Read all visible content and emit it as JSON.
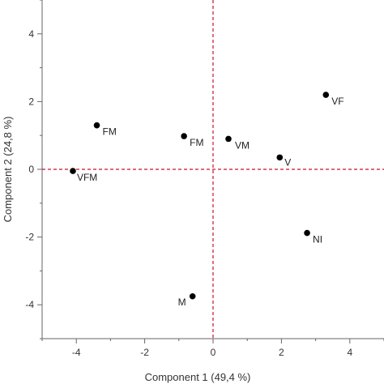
{
  "chart_data": {
    "type": "scatter",
    "title": "",
    "xlabel": "Component 1  (49,4 %)",
    "ylabel": "Component 2  (24,8 %)",
    "xlim": [
      -5,
      5
    ],
    "ylim": [
      -5,
      5
    ],
    "xticks": [
      -4,
      -2,
      0,
      2,
      4
    ],
    "yticks": [
      -4,
      -2,
      0,
      2,
      4
    ],
    "xtick_labels": [
      "-4",
      "-2",
      "0",
      "2",
      "4"
    ],
    "ytick_labels": [
      "-4",
      "-2",
      "0",
      "2",
      "4"
    ],
    "grid": false,
    "reference_lines": {
      "x": 0,
      "y": 0,
      "color": "#c8102e",
      "style": "dashed"
    },
    "point_color": "#000000",
    "points": [
      {
        "label": "VFM",
        "x": -4.1,
        "y": -0.05
      },
      {
        "label": "FM",
        "x": -3.4,
        "y": 1.3
      },
      {
        "label": "FM",
        "x": -0.85,
        "y": 0.98
      },
      {
        "label": "VM",
        "x": 0.45,
        "y": 0.9
      },
      {
        "label": "V",
        "x": 1.95,
        "y": 0.35
      },
      {
        "label": "VF",
        "x": 3.3,
        "y": 2.2
      },
      {
        "label": "NI",
        "x": 2.75,
        "y": -1.88
      },
      {
        "label": "M",
        "x": -0.6,
        "y": -3.75
      }
    ]
  }
}
